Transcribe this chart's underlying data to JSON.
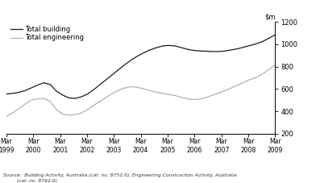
{
  "ylim": [
    200,
    1200
  ],
  "yticks": [
    200,
    400,
    600,
    800,
    1000,
    1200
  ],
  "source_text": "Source:  Building Activity, Australia (cat. no. 8752.0), Engineering Construction Activity, Australia\n         (cat. no. 8762.0)",
  "building_color": "#1a1a1a",
  "engineering_color": "#b0b0b0",
  "background_color": "#ffffff",
  "legend_labels": [
    "Total building",
    "Total engineering"
  ],
  "x_tick_labels": [
    "Mar\n1999",
    "Mar\n2000",
    "Mar\n2001",
    "Mar\n2002",
    "Mar\n2003",
    "Mar\n2004",
    "Mar\n2005",
    "Mar\n2006",
    "Mar\n2007",
    "Mar\n2008",
    "Mar\n2009"
  ],
  "total_building": [
    555,
    560,
    570,
    585,
    610,
    635,
    655,
    640,
    580,
    545,
    520,
    515,
    530,
    555,
    595,
    640,
    685,
    730,
    775,
    820,
    860,
    895,
    925,
    950,
    970,
    985,
    990,
    985,
    970,
    955,
    945,
    940,
    938,
    935,
    935,
    940,
    950,
    960,
    975,
    990,
    1005,
    1025,
    1055,
    1085
  ],
  "total_engineering": [
    355,
    385,
    425,
    465,
    500,
    510,
    515,
    490,
    415,
    375,
    365,
    370,
    385,
    415,
    455,
    490,
    525,
    560,
    590,
    610,
    620,
    615,
    600,
    585,
    570,
    560,
    550,
    540,
    525,
    510,
    505,
    510,
    525,
    545,
    565,
    585,
    610,
    635,
    660,
    685,
    705,
    735,
    775,
    815
  ]
}
